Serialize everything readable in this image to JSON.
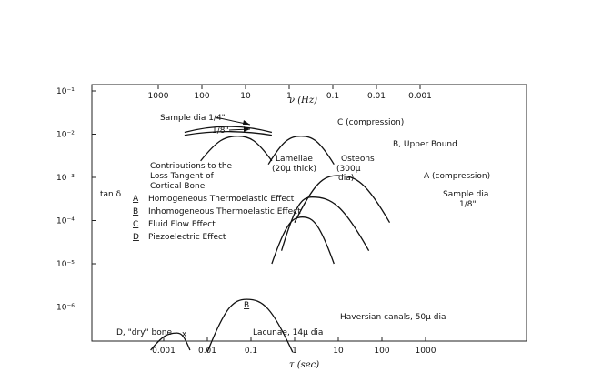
{
  "chart_data": {
    "type": "line",
    "title": "",
    "y_axis": {
      "label": "tan δ",
      "scale": "log",
      "range": [
        1e-07,
        0.1
      ],
      "ticks": [
        {
          "value": 0.1,
          "label": "10⁻¹"
        },
        {
          "value": 0.01,
          "label": "10⁻²"
        },
        {
          "value": 0.001,
          "label": "10⁻³"
        },
        {
          "value": 0.0001,
          "label": "10⁻⁴"
        },
        {
          "value": 1e-05,
          "label": "10⁻⁵"
        },
        {
          "value": 1e-06,
          "label": "10⁻⁶"
        }
      ]
    },
    "x_axis_bottom": {
      "label": "τ (sec)",
      "scale": "log",
      "ticks": [
        {
          "value": 0.001,
          "label": "0.001"
        },
        {
          "value": 0.01,
          "label": "0.01"
        },
        {
          "value": 0.1,
          "label": "0.1"
        },
        {
          "value": 1,
          "label": "1"
        },
        {
          "value": 10,
          "label": "10"
        },
        {
          "value": 100,
          "label": "100"
        },
        {
          "value": 1000,
          "label": "1000"
        }
      ]
    },
    "x_axis_top": {
      "label": "ν (Hz)",
      "scale": "log",
      "ticks": [
        {
          "value": 1000,
          "label": "1000"
        },
        {
          "value": 100,
          "label": "100"
        },
        {
          "value": 10,
          "label": "10"
        },
        {
          "value": 1,
          "label": "1"
        },
        {
          "value": 0.1,
          "label": "0.1"
        },
        {
          "value": 0.01,
          "label": "0.01"
        },
        {
          "value": 0.001,
          "label": "0.001"
        }
      ]
    },
    "legend": {
      "heading": [
        "Contributions to the",
        "Loss Tangent of",
        "Cortical Bone"
      ],
      "items": [
        {
          "key": "A",
          "text": "Homogeneous Thermoelastic Effect"
        },
        {
          "key": "B",
          "text": "Inhomogeneous Thermoelastic Effect"
        },
        {
          "key": "C",
          "text": "Fluid Flow Effect"
        },
        {
          "key": "D",
          "text": "Piezoelectric Effect"
        }
      ]
    },
    "series": [
      {
        "id": "C-quarter",
        "kind": "arc",
        "tau_from": 0.003,
        "tau_to": 0.3,
        "tan_peak": 0.015,
        "tan_ends": 0.011
      },
      {
        "id": "C-eighth",
        "kind": "arc",
        "tau_from": 0.003,
        "tau_to": 0.3,
        "tan_peak": 0.0115,
        "tan_ends": 0.0095
      },
      {
        "id": "B-lamellae",
        "kind": "peak",
        "tau_from": 0.007,
        "tau_peak": 0.05,
        "tau_to": 0.3,
        "tan_peak": 0.009,
        "tan_ends": 0.0024
      },
      {
        "id": "B-osteons",
        "kind": "peak",
        "tau_from": 0.25,
        "tau_peak": 1.4,
        "tau_to": 8,
        "tan_peak": 0.009,
        "tan_ends": 0.002
      },
      {
        "id": "A-upper",
        "kind": "peak",
        "tau_from": 1,
        "tau_peak": 10,
        "tau_to": 150,
        "tan_peak": 0.0011,
        "tan_ends": 9e-05
      },
      {
        "id": "A-mid",
        "kind": "peak",
        "tau_from": 0.5,
        "tau_peak": 2.5,
        "tau_to": 50,
        "tan_peak": 0.00035,
        "tan_ends": 2e-05
      },
      {
        "id": "A-lower",
        "kind": "peak",
        "tau_from": 0.3,
        "tau_peak": 1.5,
        "tau_to": 8,
        "tan_peak": 0.00012,
        "tan_ends": 1e-05
      },
      {
        "id": "B-haversian",
        "kind": "peak",
        "tau_from": 0.01,
        "tau_peak": 0.08,
        "tau_to": 0.9,
        "tan_peak": 1.5e-06,
        "tan_ends": 9e-08
      },
      {
        "id": "B-lacunae",
        "kind": "peak",
        "tau_from": 0.0005,
        "tau_peak": 0.002,
        "tau_to": 0.004,
        "tan_peak": 2.5e-07,
        "tan_ends": 1e-07
      }
    ],
    "annotations": {
      "sample_quarter": "Sample dia 1/4\"",
      "sample_eighth": "1/8\"",
      "c_compression": "C (compression)",
      "b_upper_bound": "B, Upper Bound",
      "lamellae_1": "Lamellae",
      "lamellae_2": "(20μ thick)",
      "osteons_1": "Osteons",
      "osteons_2": "(300μ",
      "osteons_3": "dia)",
      "a_compression": "A (compression)",
      "sample_dia_a_1": "Sample dia",
      "sample_dia_a_2": "1/8\"",
      "b_letter": "B",
      "haversian": "Haversian canals, 50μ dia",
      "lacunae": "Lacunae, 14μ dia",
      "d_dry": "D, \"dry\" bone",
      "d_marker": "x"
    }
  }
}
